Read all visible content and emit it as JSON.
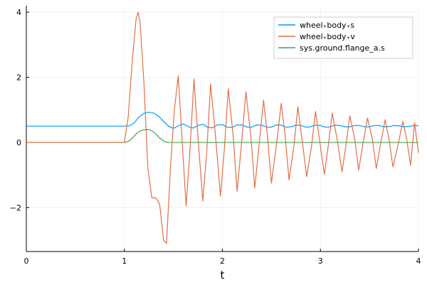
{
  "chart_data": {
    "type": "line",
    "title": "",
    "xlabel": "t",
    "ylabel": "",
    "xlim": [
      0,
      4
    ],
    "ylim": [
      -3.35,
      4.2
    ],
    "x_ticks": [
      0,
      1,
      2,
      3,
      4
    ],
    "x_tick_labels": [
      "0",
      "1",
      "2",
      "3",
      "4"
    ],
    "y_ticks": [
      -2,
      0,
      2,
      4
    ],
    "y_tick_labels": [
      "−2",
      "0",
      "2",
      "4"
    ],
    "grid": true,
    "legend_position": "top-right",
    "series": [
      {
        "name": "wheel₊body₊s",
        "color": "#009af9",
        "x": [
          0,
          1.0,
          1.05,
          1.1,
          1.15,
          1.2,
          1.25,
          1.3,
          1.35,
          1.4,
          1.45,
          1.5,
          1.55,
          1.6,
          1.65,
          1.7,
          1.75,
          1.8,
          1.85,
          1.9,
          1.95,
          2.0,
          2.05,
          2.1,
          2.15,
          2.2,
          2.25,
          2.3,
          2.35,
          2.4,
          2.45,
          2.5,
          2.55,
          2.6,
          2.65,
          2.7,
          2.75,
          2.8,
          2.85,
          2.9,
          2.95,
          3.0,
          3.05,
          3.1,
          3.15,
          3.2,
          3.25,
          3.3,
          3.35,
          3.4,
          3.45,
          3.5,
          3.55,
          3.6,
          3.65,
          3.7,
          3.75,
          3.8,
          3.85,
          3.9,
          3.95,
          4.0
        ],
        "y": [
          0.5,
          0.5,
          0.51,
          0.6,
          0.78,
          0.9,
          0.93,
          0.9,
          0.8,
          0.65,
          0.5,
          0.43,
          0.51,
          0.57,
          0.49,
          0.44,
          0.52,
          0.56,
          0.47,
          0.45,
          0.54,
          0.55,
          0.47,
          0.46,
          0.54,
          0.54,
          0.47,
          0.47,
          0.54,
          0.53,
          0.47,
          0.47,
          0.54,
          0.53,
          0.47,
          0.48,
          0.53,
          0.52,
          0.47,
          0.48,
          0.53,
          0.52,
          0.47,
          0.48,
          0.53,
          0.52,
          0.48,
          0.48,
          0.52,
          0.52,
          0.48,
          0.48,
          0.52,
          0.52,
          0.48,
          0.49,
          0.52,
          0.51,
          0.48,
          0.49,
          0.52,
          0.51
        ]
      },
      {
        "name": "wheel₊body₊v",
        "color": "#e26f46",
        "x": [
          0,
          1.0,
          1.04,
          1.08,
          1.12,
          1.14,
          1.16,
          1.2,
          1.24,
          1.28,
          1.32,
          1.36,
          1.4,
          1.43,
          1.47,
          1.51,
          1.55,
          1.59,
          1.63,
          1.67,
          1.71,
          1.75,
          1.8,
          1.84,
          1.88,
          1.93,
          1.98,
          2.02,
          2.06,
          2.11,
          2.15,
          2.19,
          2.24,
          2.29,
          2.33,
          2.37,
          2.42,
          2.46,
          2.5,
          2.55,
          2.6,
          2.64,
          2.68,
          2.73,
          2.77,
          2.81,
          2.86,
          2.91,
          2.95,
          2.99,
          3.04,
          3.08,
          3.12,
          3.17,
          3.22,
          3.26,
          3.3,
          3.35,
          3.39,
          3.43,
          3.48,
          3.53,
          3.57,
          3.61,
          3.66,
          3.7,
          3.74,
          3.79,
          3.84,
          3.88,
          3.92,
          3.96,
          4.0
        ],
        "y": [
          0,
          0,
          0.8,
          2.5,
          3.8,
          4.0,
          3.7,
          1.8,
          -0.8,
          -1.7,
          -1.7,
          -1.9,
          -3.0,
          -3.1,
          -0.8,
          1.0,
          2.05,
          0.0,
          -1.95,
          -0.2,
          1.95,
          0.2,
          -1.8,
          -0.3,
          1.8,
          0.2,
          -1.65,
          -0.2,
          1.65,
          0.2,
          -1.5,
          -0.2,
          1.55,
          0.2,
          -1.4,
          -0.2,
          1.3,
          0.2,
          -1.25,
          -0.1,
          1.2,
          0.2,
          -1.15,
          -0.1,
          1.1,
          0.15,
          -1.05,
          -0.1,
          0.95,
          0.1,
          -0.98,
          -0.1,
          0.9,
          0.1,
          -0.9,
          -0.1,
          0.82,
          0.1,
          -0.85,
          -0.1,
          0.75,
          0.1,
          -0.8,
          -0.1,
          0.7,
          0.1,
          -0.75,
          -0.1,
          0.65,
          0.1,
          -0.7,
          0.6,
          -0.32
        ]
      },
      {
        "name": "sys.ground.flange_a.s",
        "color": "#3ea44e",
        "x": [
          0,
          1.0,
          1.04,
          1.08,
          1.12,
          1.16,
          1.2,
          1.24,
          1.28,
          1.32,
          1.36,
          1.4,
          1.44,
          1.5,
          2.0,
          3.0,
          4.0
        ],
        "y": [
          0,
          0,
          0.03,
          0.13,
          0.26,
          0.35,
          0.39,
          0.4,
          0.36,
          0.26,
          0.14,
          0.04,
          0.0,
          0,
          0,
          0,
          0
        ]
      }
    ]
  }
}
